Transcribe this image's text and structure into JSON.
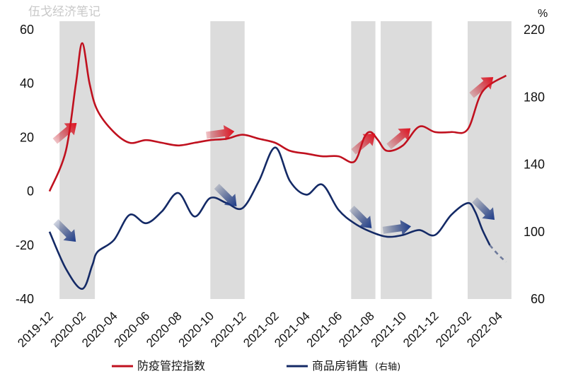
{
  "watermark": "伍戈经济笔记",
  "chart_data": {
    "type": "line",
    "x_ticks": [
      "2019-12",
      "2020-02",
      "2020-04",
      "2020-06",
      "2020-08",
      "2020-10",
      "2020-12",
      "2021-02",
      "2021-04",
      "2021-06",
      "2021-08",
      "2021-10",
      "2021-12",
      "2022-02",
      "2022-04"
    ],
    "left_axis": {
      "ticks": [
        "60",
        "40",
        "20",
        "0",
        "-20",
        "-40"
      ],
      "range": [
        -40,
        60
      ]
    },
    "right_axis": {
      "unit": "%",
      "ticks": [
        "220",
        "180",
        "140",
        "100",
        "60"
      ],
      "range": [
        60,
        220
      ]
    },
    "shaded_periods": [
      [
        "2019-12-20",
        "2020-02-25"
      ],
      [
        "2020-10-01",
        "2020-12-05"
      ],
      [
        "2021-06-25",
        "2021-08-10"
      ],
      [
        "2021-08-20",
        "2021-11-25"
      ],
      [
        "2022-02-01",
        "2022-04-25"
      ]
    ],
    "series": [
      {
        "name": "防疫管控指数",
        "axis": "left",
        "color": "#c0111f",
        "points": [
          [
            "2019-12-01",
            0
          ],
          [
            "2020-01-01",
            15
          ],
          [
            "2020-01-20",
            40
          ],
          [
            "2020-02-01",
            55
          ],
          [
            "2020-02-15",
            40
          ],
          [
            "2020-03-01",
            30
          ],
          [
            "2020-04-01",
            22
          ],
          [
            "2020-05-01",
            18
          ],
          [
            "2020-06-01",
            19
          ],
          [
            "2020-07-01",
            18
          ],
          [
            "2020-08-01",
            17
          ],
          [
            "2020-09-01",
            18
          ],
          [
            "2020-10-01",
            19
          ],
          [
            "2020-11-01",
            19.5
          ],
          [
            "2020-12-01",
            21
          ],
          [
            "2021-01-01",
            19.5
          ],
          [
            "2021-02-01",
            18
          ],
          [
            "2021-03-01",
            15
          ],
          [
            "2021-04-01",
            14
          ],
          [
            "2021-05-01",
            13
          ],
          [
            "2021-06-01",
            13
          ],
          [
            "2021-07-01",
            11
          ],
          [
            "2021-07-20",
            20
          ],
          [
            "2021-08-01",
            22
          ],
          [
            "2021-08-15",
            19
          ],
          [
            "2021-09-01",
            15
          ],
          [
            "2021-10-01",
            17
          ],
          [
            "2021-11-01",
            24
          ],
          [
            "2021-12-01",
            22
          ],
          [
            "2022-01-01",
            22
          ],
          [
            "2022-02-01",
            23
          ],
          [
            "2022-03-01",
            37
          ],
          [
            "2022-04-15",
            43
          ]
        ]
      },
      {
        "name": "商品房销售",
        "name_note": "(右轴)",
        "axis": "right",
        "color": "#142a66",
        "points": [
          [
            "2019-12-01",
            100
          ],
          [
            "2020-01-01",
            78
          ],
          [
            "2020-02-01",
            66
          ],
          [
            "2020-02-20",
            80
          ],
          [
            "2020-03-01",
            88
          ],
          [
            "2020-04-01",
            95
          ],
          [
            "2020-05-01",
            110
          ],
          [
            "2020-06-01",
            105
          ],
          [
            "2020-07-01",
            112
          ],
          [
            "2020-08-01",
            123
          ],
          [
            "2020-09-01",
            109
          ],
          [
            "2020-10-01",
            120
          ],
          [
            "2020-11-01",
            117
          ],
          [
            "2020-12-01",
            114
          ],
          [
            "2021-01-01",
            130
          ],
          [
            "2021-02-01",
            150
          ],
          [
            "2021-03-01",
            130
          ],
          [
            "2021-04-01",
            122
          ],
          [
            "2021-05-01",
            128
          ],
          [
            "2021-06-01",
            113
          ],
          [
            "2021-07-01",
            105
          ],
          [
            "2021-08-01",
            100
          ],
          [
            "2021-09-01",
            97
          ],
          [
            "2021-10-01",
            98
          ],
          [
            "2021-11-01",
            101
          ],
          [
            "2021-12-01",
            98
          ],
          [
            "2022-01-01",
            110
          ],
          [
            "2022-02-01",
            117
          ],
          [
            "2022-02-15",
            112
          ],
          [
            "2022-03-01",
            101
          ],
          [
            "2022-03-15",
            92
          ],
          [
            "2022-04-01",
            86
          ],
          [
            "2022-04-15",
            82
          ]
        ],
        "dashed_from": "2022-03-15"
      }
    ],
    "arrows": [
      {
        "series": "防疫管控指数",
        "direction": "up",
        "at": [
          "2020-01-01",
          22
        ]
      },
      {
        "series": "防疫管控指数",
        "direction": "right",
        "at": [
          "2020-10-20",
          21.5
        ]
      },
      {
        "series": "防疫管控指数",
        "direction": "up",
        "at": [
          "2021-07-20",
          18
        ]
      },
      {
        "series": "防疫管控指数",
        "direction": "up",
        "at": [
          "2021-09-25",
          20
        ]
      },
      {
        "series": "防疫管控指数",
        "direction": "up",
        "at": [
          "2022-03-01",
          39
        ]
      },
      {
        "series": "商品房销售",
        "direction": "down",
        "at": [
          "2020-01-01",
          100
        ]
      },
      {
        "series": "商品房销售",
        "direction": "down",
        "at": [
          "2020-11-01",
          121
        ]
      },
      {
        "series": "商品房销售",
        "direction": "down",
        "at": [
          "2021-07-15",
          108
        ]
      },
      {
        "series": "商品房销售",
        "direction": "right",
        "at": [
          "2021-09-20",
          102
        ]
      },
      {
        "series": "商品房销售",
        "direction": "down",
        "at": [
          "2022-03-05",
          113
        ]
      }
    ],
    "legend": {
      "placement": "bottom"
    },
    "grid": false
  }
}
